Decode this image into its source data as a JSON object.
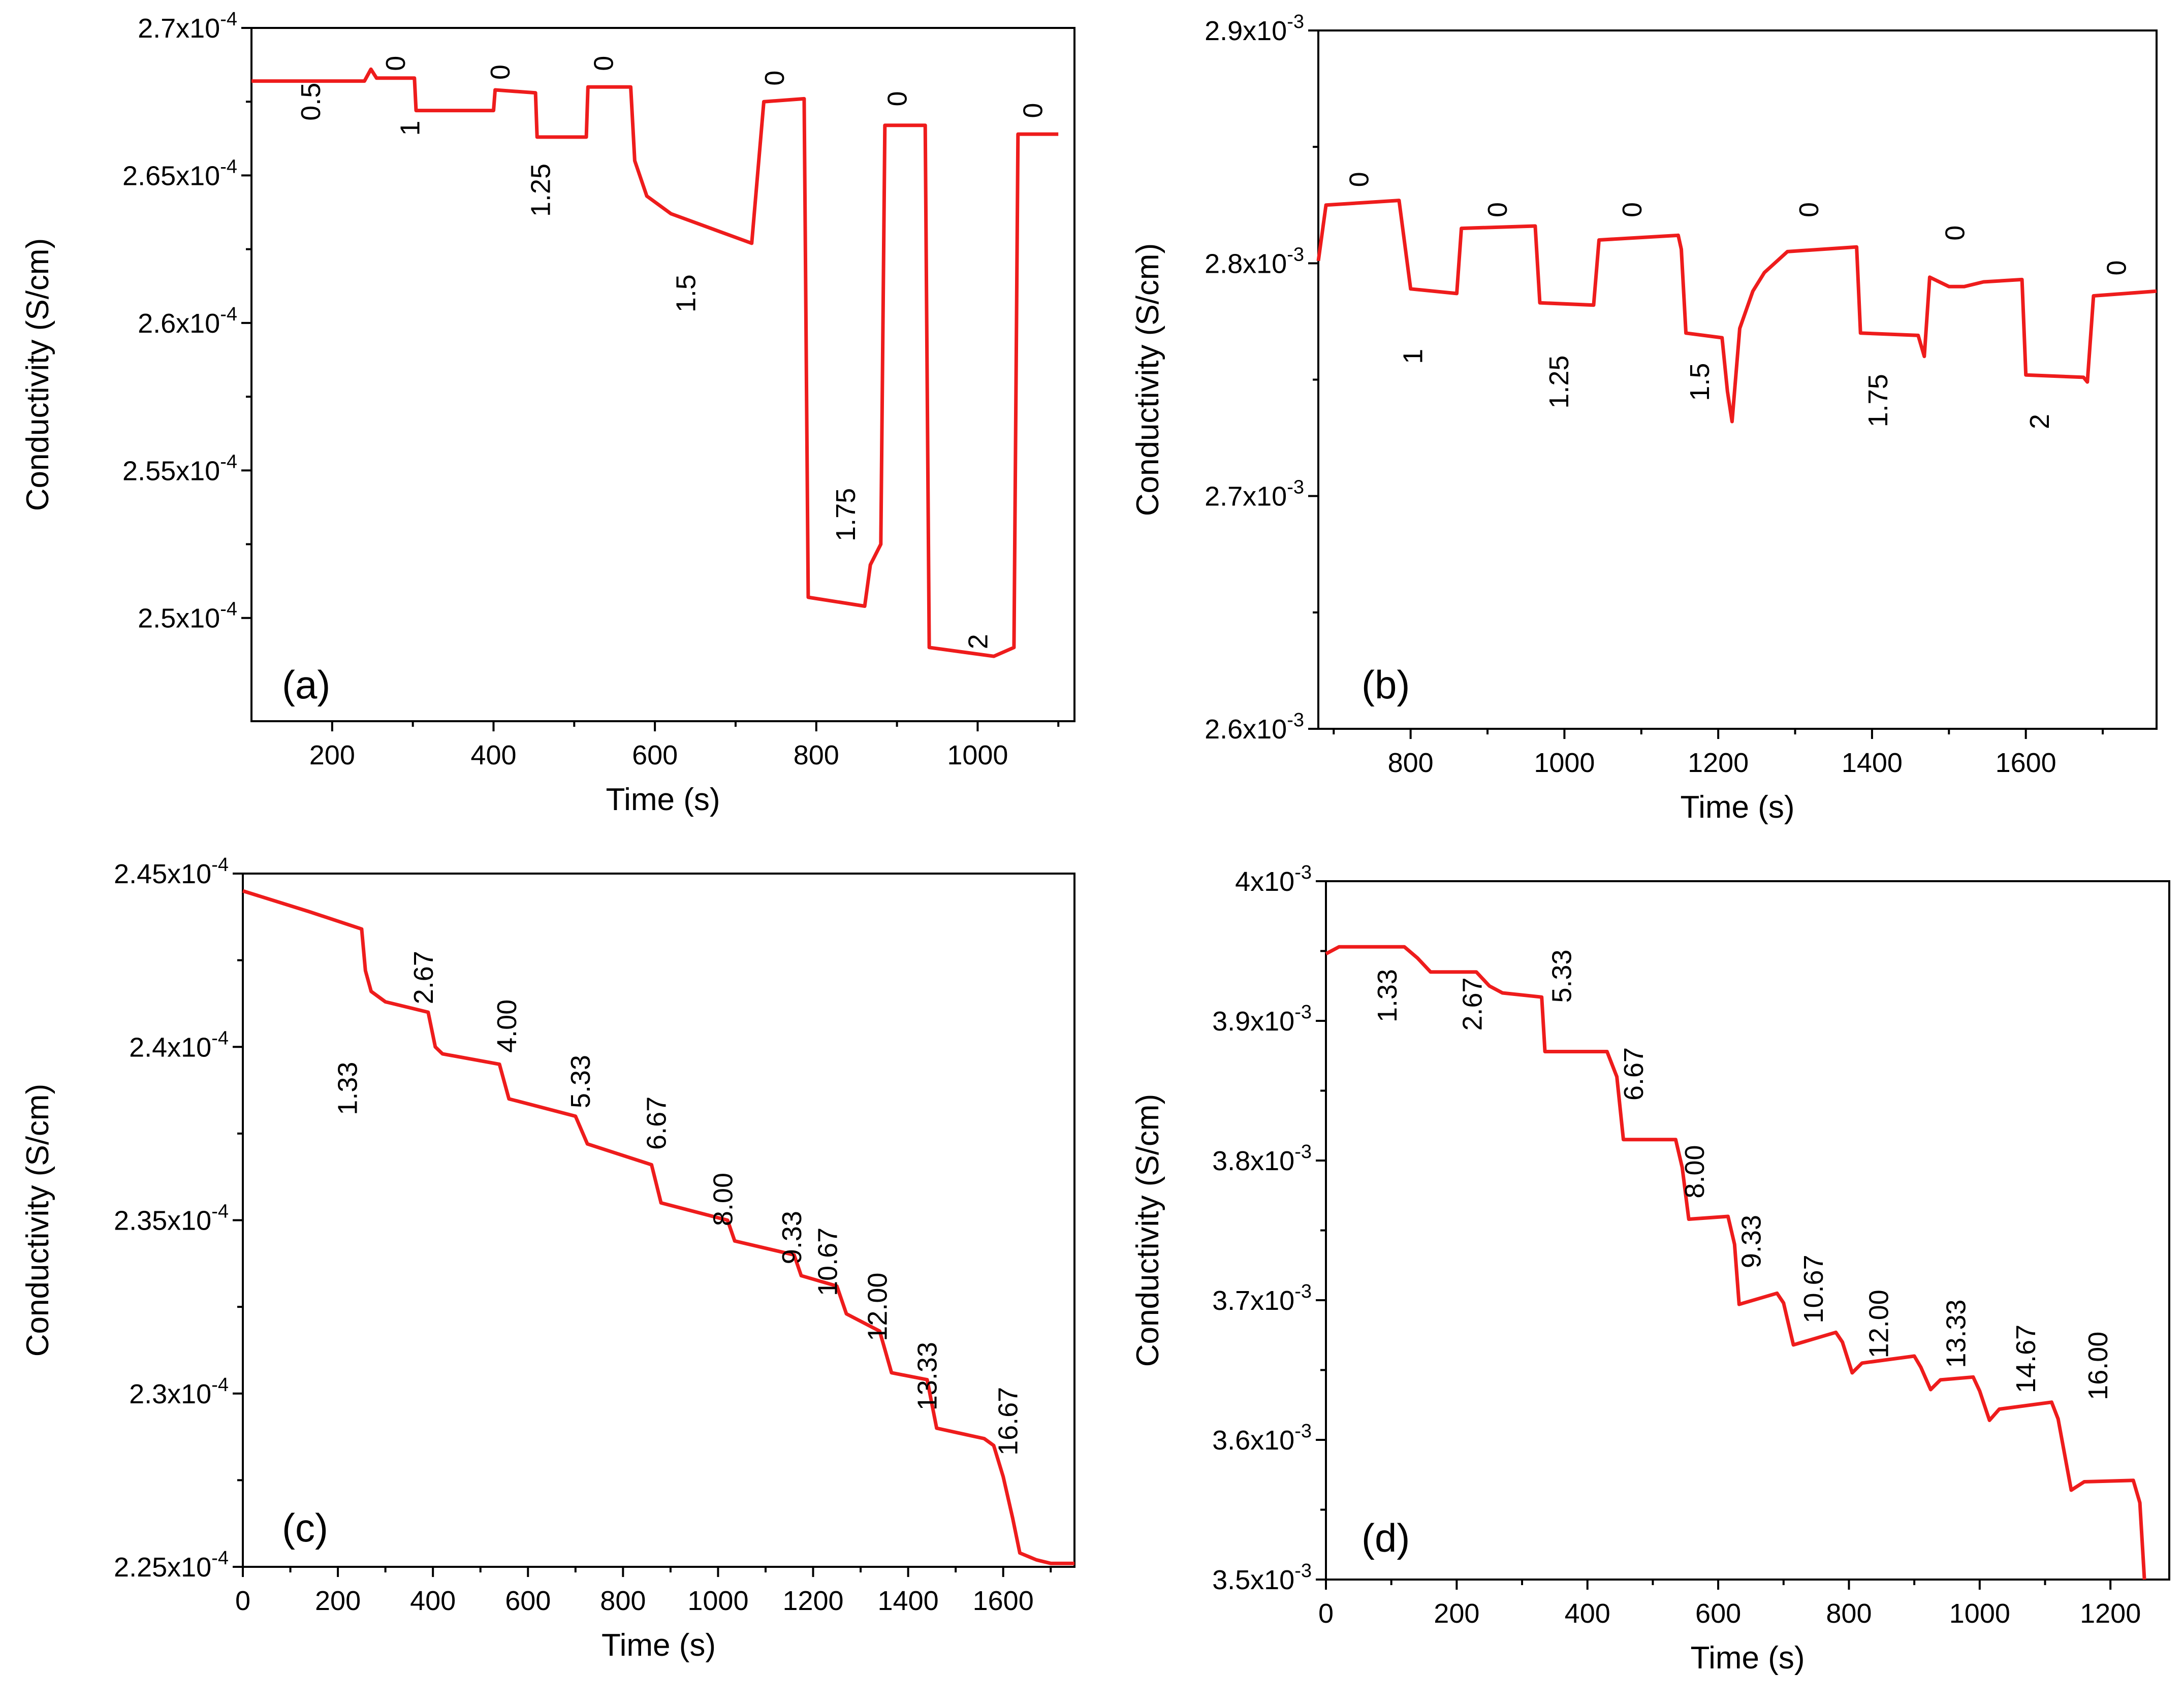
{
  "figure": {
    "panels": [
      "(a)",
      "(b)",
      "(c)",
      "(d)"
    ]
  },
  "chart_data": [
    {
      "panel": "(a)",
      "type": "line",
      "color": "#ee1c1c",
      "xlabel": "Time (s)",
      "ylabel": "Conductivity (S/cm)",
      "xlim": [
        100,
        1120
      ],
      "ylim": [
        0.0002465,
        0.00027
      ],
      "xticks": [
        200,
        400,
        600,
        800,
        1000
      ],
      "xtick_labels": [
        "200",
        "400",
        "600",
        "800",
        "1000"
      ],
      "yticks": [
        0.00025,
        0.000255,
        0.00026,
        0.000265,
        0.00027
      ],
      "ytick_labels": [
        {
          "mant": "2.5x10",
          "exp": "-4"
        },
        {
          "mant": "2.55x10",
          "exp": "-4"
        },
        {
          "mant": "2.6x10",
          "exp": "-4"
        },
        {
          "mant": "2.65x10",
          "exp": "-4"
        },
        {
          "mant": "2.7x10",
          "exp": "-4"
        }
      ],
      "series": [
        {
          "name": "conductivity",
          "points": [
            [
              100,
              0.0002682
            ],
            [
              240,
              0.0002682
            ],
            [
              248,
              0.0002686
            ],
            [
              255,
              0.0002683
            ],
            [
              302,
              0.0002683
            ],
            [
              304,
              0.0002672
            ],
            [
              400,
              0.0002672
            ],
            [
              402,
              0.0002679
            ],
            [
              452,
              0.0002678
            ],
            [
              454,
              0.0002663
            ],
            [
              515,
              0.0002663
            ],
            [
              517,
              0.000268
            ],
            [
              570,
              0.000268
            ],
            [
              575,
              0.0002655
            ],
            [
              590,
              0.0002643
            ],
            [
              620,
              0.0002637
            ],
            [
              680,
              0.0002631
            ],
            [
              720,
              0.0002627
            ],
            [
              735,
              0.0002675
            ],
            [
              785,
              0.0002676
            ],
            [
              790,
              0.0002507
            ],
            [
              860,
              0.0002504
            ],
            [
              867,
              0.0002518
            ],
            [
              880,
              0.0002525
            ],
            [
              885,
              0.0002667
            ],
            [
              935,
              0.0002667
            ],
            [
              940,
              0.000249
            ],
            [
              1020,
              0.0002487
            ],
            [
              1045,
              0.000249
            ],
            [
              1050,
              0.0002664
            ],
            [
              1100,
              0.0002664
            ]
          ]
        }
      ],
      "annotations": [
        {
          "text": "0.5",
          "x": 185,
          "y": 0.0002675,
          "rot": -90
        },
        {
          "text": "0",
          "x": 290,
          "y": 0.0002688,
          "rot": -90
        },
        {
          "text": "1",
          "x": 308,
          "y": 0.0002666,
          "rot": -90
        },
        {
          "text": "0",
          "x": 420,
          "y": 0.0002685,
          "rot": -90
        },
        {
          "text": "1.25",
          "x": 470,
          "y": 0.0002645,
          "rot": -90
        },
        {
          "text": "0",
          "x": 548,
          "y": 0.0002688,
          "rot": -90
        },
        {
          "text": "1.5",
          "x": 650,
          "y": 0.000261,
          "rot": -90
        },
        {
          "text": "0",
          "x": 760,
          "y": 0.0002683,
          "rot": -90
        },
        {
          "text": "1.75",
          "x": 848,
          "y": 0.0002535,
          "rot": -90
        },
        {
          "text": "0",
          "x": 912,
          "y": 0.0002676,
          "rot": -90
        },
        {
          "text": "2",
          "x": 1012,
          "y": 0.0002492,
          "rot": -90
        },
        {
          "text": "0",
          "x": 1080,
          "y": 0.0002672,
          "rot": -90
        }
      ]
    },
    {
      "panel": "(b)",
      "type": "line",
      "color": "#ee1c1c",
      "xlabel": "Time (s)",
      "ylabel": "Conductivity (S/cm)",
      "xlim": [
        680,
        1770
      ],
      "ylim": [
        0.0026,
        0.0029
      ],
      "xticks": [
        800,
        1000,
        1200,
        1400,
        1600
      ],
      "xtick_labels": [
        "800",
        "1000",
        "1200",
        "1400",
        "1600"
      ],
      "yticks": [
        0.0026,
        0.0027,
        0.0028,
        0.0029
      ],
      "ytick_labels": [
        {
          "mant": "2.6x10",
          "exp": "-3"
        },
        {
          "mant": "2.7x10",
          "exp": "-3"
        },
        {
          "mant": "2.8x10",
          "exp": "-3"
        },
        {
          "mant": "2.9x10",
          "exp": "-3"
        }
      ],
      "series": [
        {
          "name": "conductivity",
          "points": [
            [
              680,
              0.002801
            ],
            [
              690,
              0.002825
            ],
            [
              785,
              0.002827
            ],
            [
              800,
              0.002789
            ],
            [
              860,
              0.002787
            ],
            [
              866,
              0.002815
            ],
            [
              962,
              0.002816
            ],
            [
              968,
              0.002783
            ],
            [
              1038,
              0.002782
            ],
            [
              1045,
              0.00281
            ],
            [
              1148,
              0.002812
            ],
            [
              1152,
              0.002806
            ],
            [
              1158,
              0.00277
            ],
            [
              1205,
              0.002768
            ],
            [
              1212,
              0.002745
            ],
            [
              1218,
              0.002732
            ],
            [
              1228,
              0.002772
            ],
            [
              1245,
              0.002788
            ],
            [
              1260,
              0.002796
            ],
            [
              1290,
              0.002805
            ],
            [
              1380,
              0.002807
            ],
            [
              1385,
              0.00277
            ],
            [
              1460,
              0.002769
            ],
            [
              1468,
              0.00276
            ],
            [
              1475,
              0.002794
            ],
            [
              1500,
              0.00279
            ],
            [
              1520,
              0.00279
            ],
            [
              1545,
              0.002792
            ],
            [
              1595,
              0.002793
            ],
            [
              1600,
              0.002752
            ],
            [
              1675,
              0.002751
            ],
            [
              1680,
              0.002749
            ],
            [
              1688,
              0.002786
            ],
            [
              1770,
              0.002788
            ]
          ]
        }
      ],
      "annotations": [
        {
          "text": "0",
          "x": 745,
          "y": 0.002836,
          "rot": -90
        },
        {
          "text": "1",
          "x": 815,
          "y": 0.00276,
          "rot": -90
        },
        {
          "text": "0",
          "x": 925,
          "y": 0.002823,
          "rot": -90
        },
        {
          "text": "1.25",
          "x": 1005,
          "y": 0.002749,
          "rot": -90
        },
        {
          "text": "0",
          "x": 1100,
          "y": 0.002823,
          "rot": -90
        },
        {
          "text": "1.5",
          "x": 1188,
          "y": 0.002749,
          "rot": -90
        },
        {
          "text": "0",
          "x": 1330,
          "y": 0.002823,
          "rot": -90
        },
        {
          "text": "1.75",
          "x": 1420,
          "y": 0.002741,
          "rot": -90
        },
        {
          "text": "0",
          "x": 1520,
          "y": 0.002813,
          "rot": -90
        },
        {
          "text": "2",
          "x": 1630,
          "y": 0.002732,
          "rot": -90
        },
        {
          "text": "0",
          "x": 1730,
          "y": 0.002798,
          "rot": -90
        }
      ]
    },
    {
      "panel": "(c)",
      "type": "line",
      "color": "#ee1c1c",
      "xlabel": "Time (s)",
      "ylabel": "Conductivity (S/cm)",
      "xlim": [
        0,
        1750
      ],
      "ylim": [
        0.000225,
        0.000245
      ],
      "xticks": [
        0,
        200,
        400,
        600,
        800,
        1000,
        1200,
        1400,
        1600
      ],
      "xtick_labels": [
        "0",
        "200",
        "400",
        "600",
        "800",
        "1000",
        "1200",
        "1400",
        "1600"
      ],
      "yticks": [
        0.000225,
        0.00023,
        0.000235,
        0.00024,
        0.000245
      ],
      "ytick_labels": [
        {
          "mant": "2.25x10",
          "exp": "-4"
        },
        {
          "mant": "2.3x10",
          "exp": "-4"
        },
        {
          "mant": "2.35x10",
          "exp": "-4"
        },
        {
          "mant": "2.4x10",
          "exp": "-4"
        },
        {
          "mant": "2.45x10",
          "exp": "-4"
        }
      ],
      "series": [
        {
          "name": "conductivity",
          "points": [
            [
              0,
              0.0002445
            ],
            [
              140,
              0.0002439
            ],
            [
              250,
              0.0002434
            ],
            [
              258,
              0.0002422
            ],
            [
              270,
              0.0002416
            ],
            [
              300,
              0.0002413
            ],
            [
              390,
              0.000241
            ],
            [
              405,
              0.00024
            ],
            [
              420,
              0.0002398
            ],
            [
              540,
              0.0002395
            ],
            [
              560,
              0.0002385
            ],
            [
              700,
              0.000238
            ],
            [
              725,
              0.0002372
            ],
            [
              860,
              0.0002366
            ],
            [
              880,
              0.0002355
            ],
            [
              1020,
              0.000235
            ],
            [
              1035,
              0.0002344
            ],
            [
              1160,
              0.000234
            ],
            [
              1175,
              0.0002334
            ],
            [
              1250,
              0.0002331
            ],
            [
              1270,
              0.0002323
            ],
            [
              1340,
              0.0002318
            ],
            [
              1365,
              0.0002306
            ],
            [
              1440,
              0.0002304
            ],
            [
              1460,
              0.000229
            ],
            [
              1560,
              0.0002287
            ],
            [
              1580,
              0.0002285
            ],
            [
              1600,
              0.0002276
            ],
            [
              1620,
              0.0002264
            ],
            [
              1635,
              0.0002254
            ],
            [
              1670,
              0.0002252
            ],
            [
              1700,
              0.0002251
            ],
            [
              1750,
              0.0002251
            ]
          ]
        }
      ],
      "annotations": [
        {
          "text": "1.33",
          "x": 240,
          "y": 0.0002388,
          "rot": -90
        },
        {
          "text": "2.67",
          "x": 400,
          "y": 0.000242,
          "rot": -90
        },
        {
          "text": "4.00",
          "x": 575,
          "y": 0.0002406,
          "rot": -90
        },
        {
          "text": "5.33",
          "x": 730,
          "y": 0.000239,
          "rot": -90
        },
        {
          "text": "6.67",
          "x": 890,
          "y": 0.0002378,
          "rot": -90
        },
        {
          "text": "8.00",
          "x": 1030,
          "y": 0.0002356,
          "rot": -90
        },
        {
          "text": "9.33",
          "x": 1175,
          "y": 0.0002345,
          "rot": -90
        },
        {
          "text": "10.67",
          "x": 1250,
          "y": 0.0002338,
          "rot": -90
        },
        {
          "text": "12.00",
          "x": 1355,
          "y": 0.0002325,
          "rot": -90
        },
        {
          "text": "13.33",
          "x": 1460,
          "y": 0.0002305,
          "rot": -90
        },
        {
          "text": "16.67",
          "x": 1630,
          "y": 0.0002292,
          "rot": -90
        }
      ]
    },
    {
      "panel": "(d)",
      "type": "line",
      "color": "#ee1c1c",
      "xlabel": "Time (s)",
      "ylabel": "Conductivity (S/cm)",
      "xlim": [
        0,
        1290
      ],
      "ylim": [
        0.0035,
        0.004
      ],
      "xticks": [
        0,
        200,
        400,
        600,
        800,
        1000,
        1200
      ],
      "xtick_labels": [
        "0",
        "200",
        "400",
        "600",
        "800",
        "1000",
        "1200"
      ],
      "yticks": [
        0.0035,
        0.0036,
        0.0037,
        0.0038,
        0.0039,
        0.004
      ],
      "ytick_labels": [
        {
          "mant": "3.5x10",
          "exp": "-3"
        },
        {
          "mant": "3.6x10",
          "exp": "-3"
        },
        {
          "mant": "3.7x10",
          "exp": "-3"
        },
        {
          "mant": "3.8x10",
          "exp": "-3"
        },
        {
          "mant": "3.9x10",
          "exp": "-3"
        },
        {
          "mant": "4x10",
          "exp": "-3"
        }
      ],
      "series": [
        {
          "name": "conductivity",
          "points": [
            [
              0,
              0.003948
            ],
            [
              20,
              0.003953
            ],
            [
              120,
              0.003953
            ],
            [
              140,
              0.003945
            ],
            [
              160,
              0.003935
            ],
            [
              230,
              0.003935
            ],
            [
              250,
              0.003925
            ],
            [
              270,
              0.00392
            ],
            [
              330,
              0.003917
            ],
            [
              335,
              0.003878
            ],
            [
              430,
              0.003878
            ],
            [
              445,
              0.00386
            ],
            [
              455,
              0.003815
            ],
            [
              535,
              0.003815
            ],
            [
              545,
              0.003795
            ],
            [
              555,
              0.003758
            ],
            [
              615,
              0.00376
            ],
            [
              625,
              0.00374
            ],
            [
              632,
              0.003697
            ],
            [
              690,
              0.003705
            ],
            [
              700,
              0.003698
            ],
            [
              715,
              0.003668
            ],
            [
              780,
              0.003677
            ],
            [
              790,
              0.00367
            ],
            [
              805,
              0.003648
            ],
            [
              820,
              0.003655
            ],
            [
              900,
              0.00366
            ],
            [
              910,
              0.003652
            ],
            [
              925,
              0.003636
            ],
            [
              940,
              0.003643
            ],
            [
              990,
              0.003645
            ],
            [
              1000,
              0.003635
            ],
            [
              1015,
              0.003614
            ],
            [
              1030,
              0.003622
            ],
            [
              1110,
              0.003627
            ],
            [
              1120,
              0.003615
            ],
            [
              1140,
              0.003564
            ],
            [
              1160,
              0.00357
            ],
            [
              1235,
              0.003571
            ],
            [
              1245,
              0.003555
            ],
            [
              1252,
              0.0035
            ]
          ]
        }
      ],
      "annotations": [
        {
          "text": "1.33",
          "x": 108,
          "y": 0.003918,
          "rot": -90
        },
        {
          "text": "2.67",
          "x": 238,
          "y": 0.003912,
          "rot": -90
        },
        {
          "text": "5.33",
          "x": 375,
          "y": 0.003932,
          "rot": -90
        },
        {
          "text": "6.67",
          "x": 485,
          "y": 0.003862,
          "rot": -90
        },
        {
          "text": "8.00",
          "x": 578,
          "y": 0.003792,
          "rot": -90
        },
        {
          "text": "9.33",
          "x": 665,
          "y": 0.003742,
          "rot": -90
        },
        {
          "text": "10.67",
          "x": 760,
          "y": 0.003708,
          "rot": -90
        },
        {
          "text": "12.00",
          "x": 860,
          "y": 0.003683,
          "rot": -90
        },
        {
          "text": "13.33",
          "x": 978,
          "y": 0.003676,
          "rot": -90
        },
        {
          "text": "14.67",
          "x": 1085,
          "y": 0.003658,
          "rot": -90
        },
        {
          "text": "16.00",
          "x": 1195,
          "y": 0.003653,
          "rot": -90
        }
      ]
    }
  ]
}
